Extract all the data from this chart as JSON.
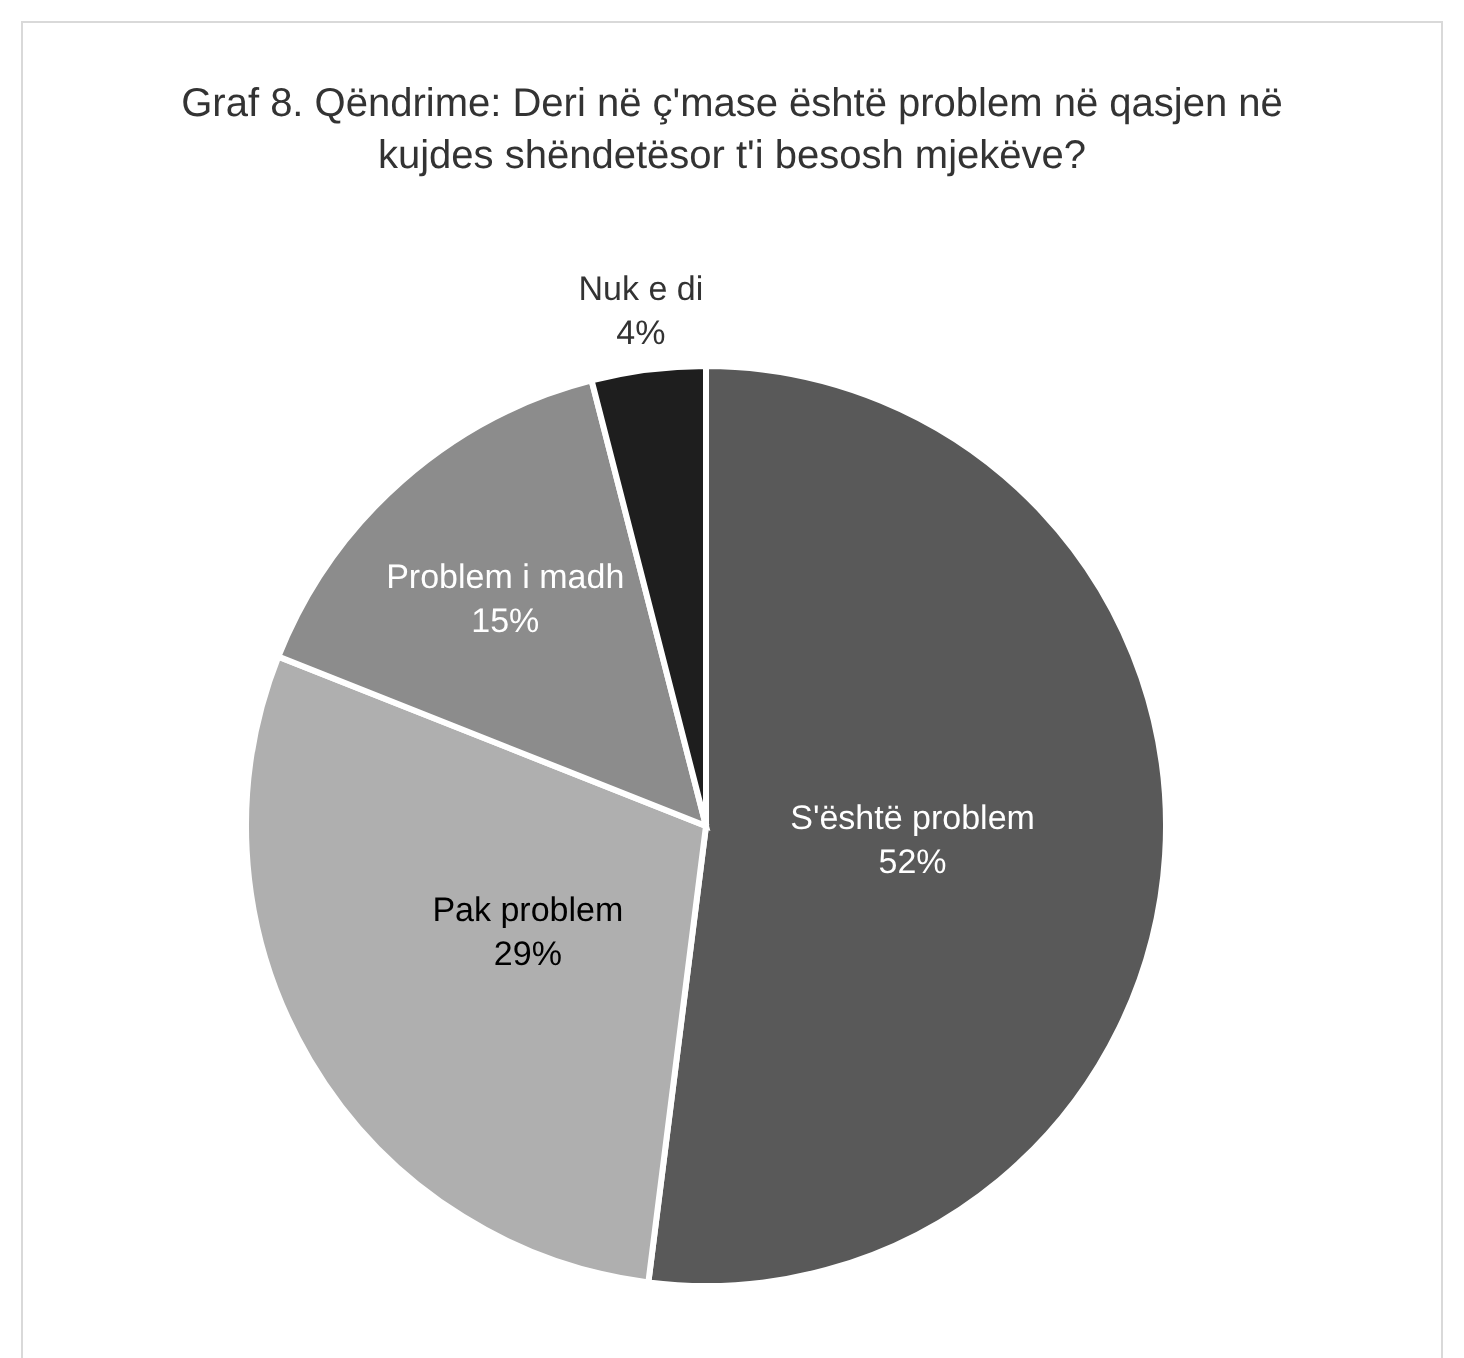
{
  "chart_data": {
    "type": "pie",
    "title": "Graf 8. Qëndrime: Deri në ç'mase është problem në qasjen në kujdes shëndetësor t'i besosh mjekëve?",
    "categories": [
      "S'është problem",
      "Pak problem",
      "Problem i madh",
      "Nuk e di"
    ],
    "values": [
      52,
      29,
      15,
      4
    ],
    "value_labels": [
      "52%",
      "29%",
      "15%",
      "4%"
    ],
    "colors": [
      "#595959",
      "#afafaf",
      "#8c8c8c",
      "#1e1e1e"
    ]
  }
}
